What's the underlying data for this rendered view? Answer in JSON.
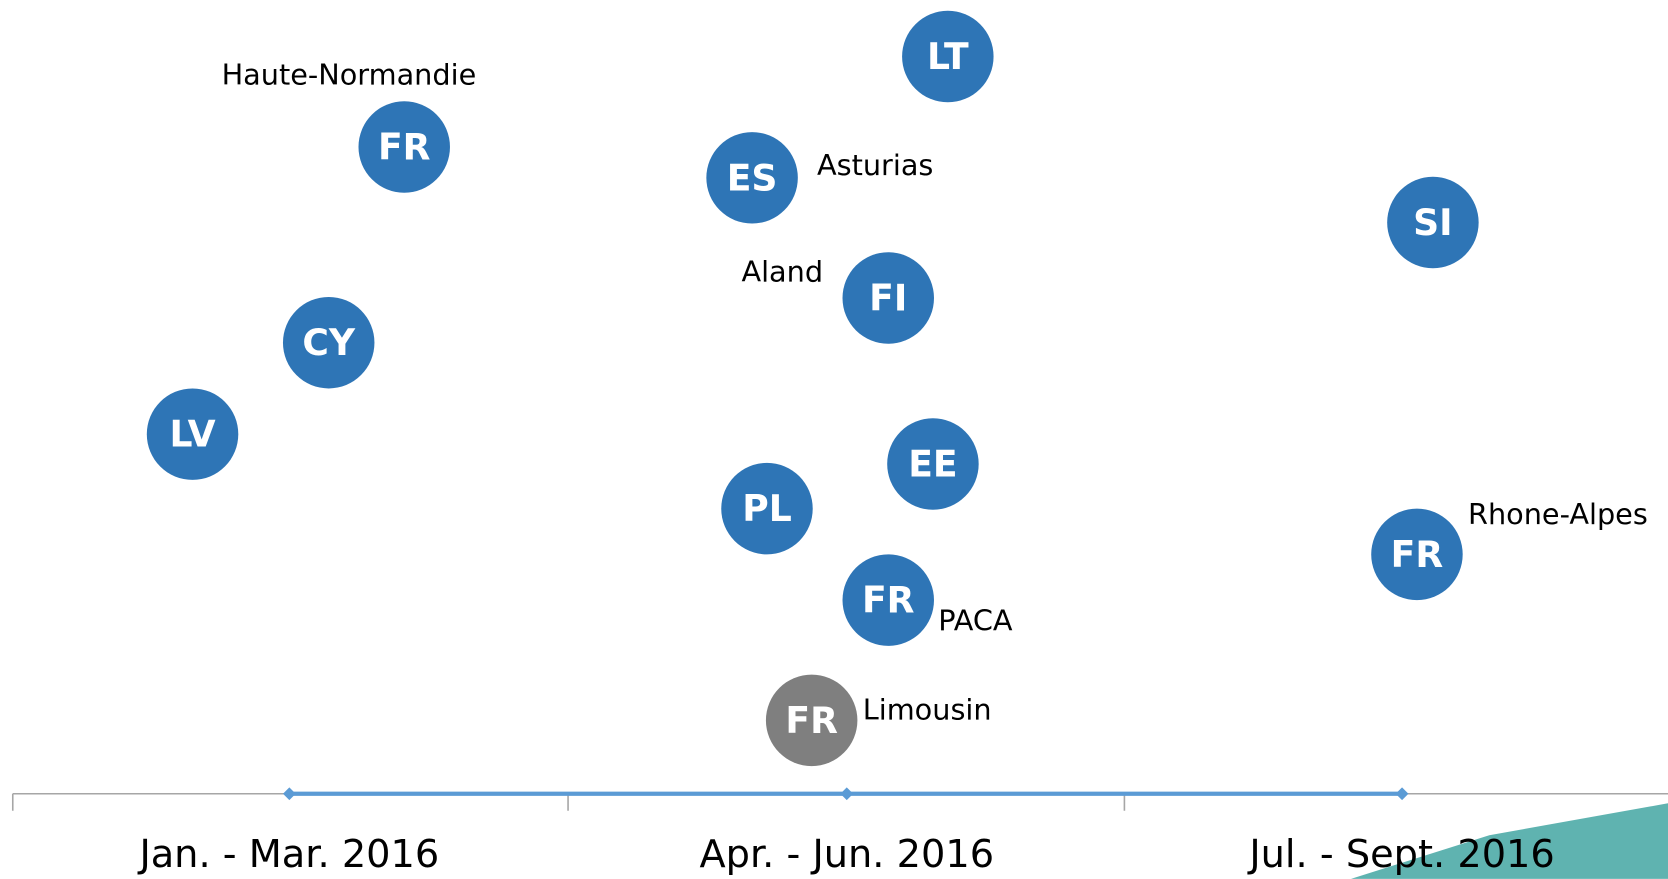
{
  "timeline": {
    "periods": [
      "Jan. - Mar. 2016",
      "Apr. - Jun. 2016",
      "Jul. - Sept. 2016"
    ]
  },
  "nodes": [
    {
      "label": "FR",
      "region": "Haute-Normandie"
    },
    {
      "label": "LT"
    },
    {
      "label": "ES",
      "region": "Asturias"
    },
    {
      "label": "SI"
    },
    {
      "label": "FI",
      "region": "Aland"
    },
    {
      "label": "CY"
    },
    {
      "label": "LV"
    },
    {
      "label": "EE"
    },
    {
      "label": "PL"
    },
    {
      "label": "FR",
      "region": "Rhone-Alpes"
    },
    {
      "label": "FR",
      "region": "PACA"
    },
    {
      "label": "FR",
      "region": "Limousin"
    }
  ]
}
